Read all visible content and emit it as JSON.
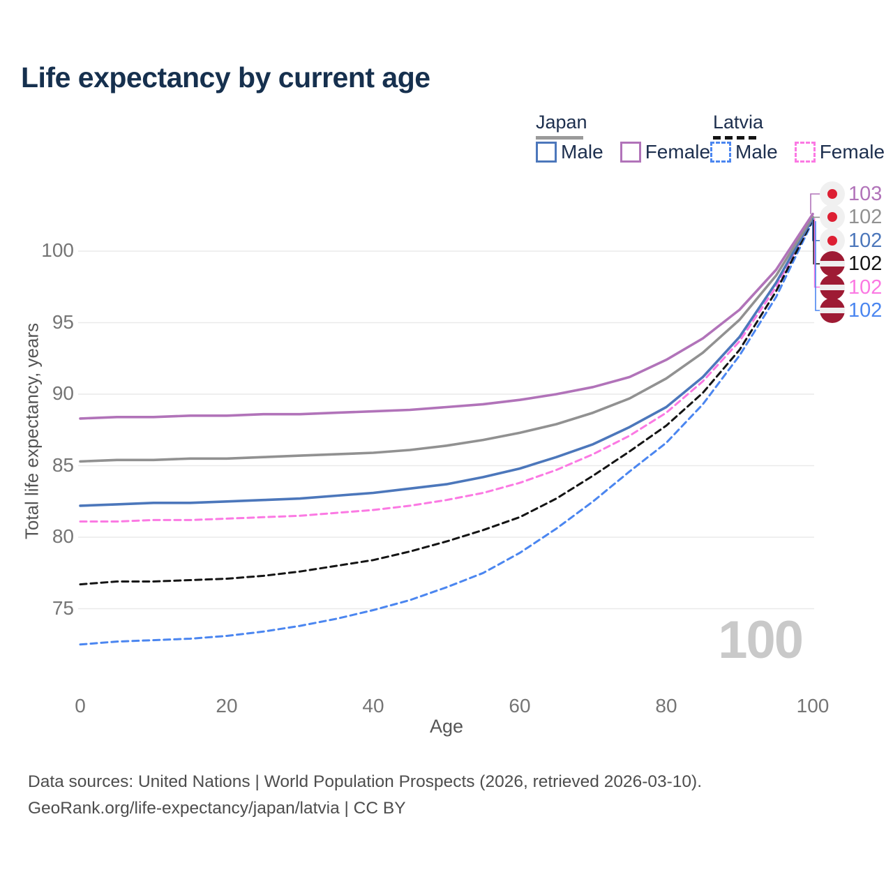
{
  "title": "Life expectancy by current age",
  "legend": {
    "groups": [
      {
        "label": "Japan",
        "underline_color": "#9a9a9a",
        "underline_style": "solid",
        "entries": [
          {
            "label": "Male",
            "color": "#4c77bb",
            "dashed": false
          },
          {
            "label": "Female",
            "color": "#b173b9",
            "dashed": false
          }
        ]
      },
      {
        "label": "Latvia",
        "underline_color": "#141414",
        "underline_style": "dashed",
        "entries": [
          {
            "label": "Male",
            "color": "#4b86f0",
            "dashed": true
          },
          {
            "label": "Female",
            "color": "#fb79e3",
            "dashed": true
          }
        ]
      }
    ]
  },
  "watermark": "100",
  "footer": {
    "line1": "Data sources: United Nations | World Population Prospects (2026, retrieved 2026-03-10).",
    "line2": "GeoRank.org/life-expectancy/japan/latvia | CC BY"
  },
  "chart_data": {
    "type": "line",
    "title": "Life expectancy by current age",
    "xlabel": "Age",
    "ylabel": "Total life expectancy, years",
    "x": [
      0,
      5,
      10,
      15,
      20,
      25,
      30,
      35,
      40,
      45,
      50,
      55,
      60,
      65,
      70,
      75,
      80,
      85,
      90,
      95,
      100
    ],
    "xticks": [
      0,
      20,
      40,
      60,
      80,
      100
    ],
    "yticks": [
      75,
      80,
      85,
      90,
      95,
      100
    ],
    "xlim": [
      0,
      100
    ],
    "ylim": [
      71.5,
      103.5
    ],
    "grid": true,
    "legend_position": "top-right",
    "series": [
      {
        "name": "Japan Female",
        "country": "Japan",
        "sex": "Female",
        "flag": "japan",
        "color": "#b173b9",
        "style": "solid",
        "end_label": "103",
        "values": [
          88.3,
          88.4,
          88.4,
          88.5,
          88.5,
          88.6,
          88.6,
          88.7,
          88.8,
          88.9,
          89.1,
          89.3,
          89.6,
          90.0,
          90.5,
          91.2,
          92.4,
          93.9,
          95.9,
          98.7,
          102.6
        ]
      },
      {
        "name": "Japan Both Sexes",
        "country": "Japan",
        "sex": "Both",
        "flag": "japan",
        "color": "#919191",
        "style": "solid",
        "end_label": "102",
        "values": [
          85.3,
          85.4,
          85.4,
          85.5,
          85.5,
          85.6,
          85.7,
          85.8,
          85.9,
          86.1,
          86.4,
          86.8,
          87.3,
          87.9,
          88.7,
          89.7,
          91.1,
          92.9,
          95.2,
          98.3,
          102.4
        ]
      },
      {
        "name": "Japan Male",
        "country": "Japan",
        "sex": "Male",
        "flag": "japan",
        "color": "#4c77bb",
        "style": "solid",
        "end_label": "102",
        "values": [
          82.2,
          82.3,
          82.4,
          82.4,
          82.5,
          82.6,
          82.7,
          82.9,
          83.1,
          83.4,
          83.7,
          84.2,
          84.8,
          85.6,
          86.5,
          87.7,
          89.1,
          91.2,
          94.0,
          97.8,
          102.3
        ]
      },
      {
        "name": "Latvia Both Sexes",
        "country": "Latvia",
        "sex": "Both",
        "flag": "latvia",
        "color": "#141414",
        "style": "dashed",
        "end_label": "102",
        "values": [
          76.7,
          76.9,
          76.9,
          77.0,
          77.1,
          77.3,
          77.6,
          78.0,
          78.4,
          79.0,
          79.7,
          80.5,
          81.4,
          82.7,
          84.3,
          86.0,
          87.8,
          90.1,
          93.1,
          97.2,
          102.2
        ]
      },
      {
        "name": "Latvia Female",
        "country": "Latvia",
        "sex": "Female",
        "flag": "latvia",
        "color": "#fb79e3",
        "style": "dashed",
        "end_label": "102",
        "values": [
          81.1,
          81.1,
          81.2,
          81.2,
          81.3,
          81.4,
          81.5,
          81.7,
          81.9,
          82.2,
          82.6,
          83.1,
          83.8,
          84.7,
          85.8,
          87.1,
          88.7,
          90.9,
          93.7,
          97.5,
          102.3
        ]
      },
      {
        "name": "Latvia Male",
        "country": "Latvia",
        "sex": "Male",
        "flag": "latvia",
        "color": "#4b86f0",
        "style": "dashed",
        "end_label": "102",
        "values": [
          72.5,
          72.7,
          72.8,
          72.9,
          73.1,
          73.4,
          73.8,
          74.3,
          74.9,
          75.6,
          76.5,
          77.5,
          78.9,
          80.6,
          82.5,
          84.6,
          86.6,
          89.3,
          92.7,
          96.8,
          102.1
        ]
      }
    ]
  }
}
